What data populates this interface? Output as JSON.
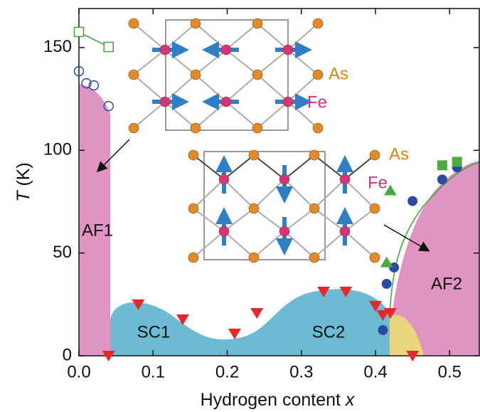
{
  "chart_data": {
    "type": "scatter",
    "xlabel": "Hydrogen content",
    "xlabel_var": "x",
    "ylabel_var": "T",
    "ylabel_unit": "(K)",
    "xlim": [
      0,
      0.54
    ],
    "ylim": [
      0,
      169
    ],
    "xticks": [
      {
        "value": 0,
        "label": "0.0"
      },
      {
        "value": 0.1,
        "label": "0.1"
      },
      {
        "value": 0.2,
        "label": "0.2"
      },
      {
        "value": 0.3,
        "label": "0.3"
      },
      {
        "value": 0.4,
        "label": "0.4"
      },
      {
        "value": 0.5,
        "label": "0.5"
      }
    ],
    "yticks": [
      0,
      50,
      100,
      150
    ],
    "series": [
      {
        "marker": "open-circle",
        "color": "#2b4aa3",
        "x": [
          0,
          0.01,
          0.02,
          0.04
        ],
        "values": [
          138.5,
          132.6,
          131.6,
          121.5
        ]
      },
      {
        "marker": "open-square",
        "color": "#3fa535",
        "line": true,
        "x": [
          0,
          0.04
        ],
        "values": [
          157.6,
          150.3
        ]
      },
      {
        "marker": "triangle-down",
        "color": "#e5262a",
        "x": [
          0.04,
          0.08,
          0.14,
          0.21,
          0.24,
          0.33,
          0.36,
          0.4,
          0.41,
          0.42,
          0.45
        ],
        "values": [
          0,
          25,
          17.7,
          10.8,
          20.8,
          31.2,
          31.2,
          24.3,
          19.8,
          20.8,
          0
        ]
      },
      {
        "marker": "circle",
        "color": "#2b4aa3",
        "x": [
          0.41,
          0.415,
          0.425,
          0.45,
          0.49,
          0.51
        ],
        "values": [
          12.5,
          35,
          43,
          75.3,
          85.8,
          91.7
        ]
      },
      {
        "marker": "triangle-up",
        "color": "#4bab3e",
        "x": [
          0.415,
          0.42
        ],
        "values": [
          45.5,
          80.5
        ]
      },
      {
        "marker": "square",
        "color": "#4bab3e",
        "x": [
          0.49,
          0.51
        ],
        "values": [
          92.7,
          94.4
        ]
      }
    ],
    "regions": [
      "AF1",
      "SC1",
      "SC2",
      "AF2"
    ],
    "atoms": [
      "As",
      "Fe",
      "As",
      "Fe"
    ]
  }
}
